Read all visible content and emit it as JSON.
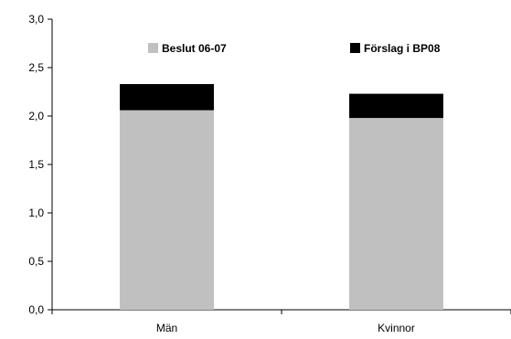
{
  "chart_data": {
    "type": "bar",
    "stacked": true,
    "categories": [
      "Män",
      "Kvinnor"
    ],
    "series": [
      {
        "name": "Beslut 06-07",
        "values": [
          2.06,
          1.98
        ],
        "color": "#c0c0c0"
      },
      {
        "name": "Förslag i BP08",
        "values": [
          0.27,
          0.25
        ],
        "color": "#000000"
      }
    ],
    "ylim": [
      0,
      3.0
    ],
    "yticks": [
      "0,0",
      "0,5",
      "1,0",
      "1,5",
      "2,0",
      "2,5",
      "3,0"
    ],
    "legend_position": "top",
    "grid": false
  }
}
